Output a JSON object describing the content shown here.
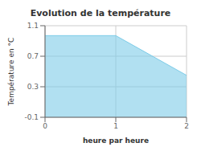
{
  "chart_data": {
    "type": "area",
    "title": "Evolution de la température",
    "xlabel": "heure par heure",
    "ylabel": "Température en °C",
    "x": [
      0,
      1,
      2
    ],
    "values": [
      0.97,
      0.97,
      0.45
    ],
    "color": "#7dcce8",
    "xlim": [
      0,
      2
    ],
    "ylim": [
      -0.1,
      1.1
    ],
    "xticks": [
      0,
      1,
      2
    ],
    "yticks": [
      -0.1,
      0.3,
      0.7,
      1.1
    ],
    "grid": true
  }
}
